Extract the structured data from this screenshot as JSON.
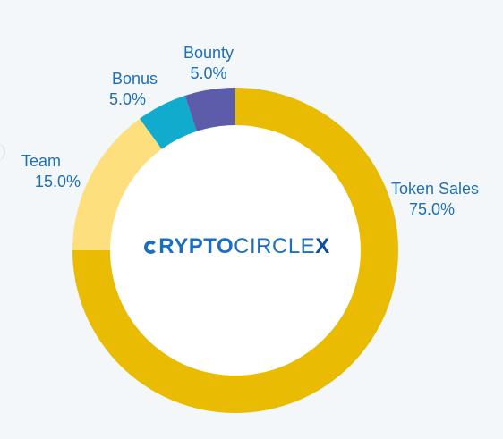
{
  "chart_data": {
    "type": "pie",
    "donut": true,
    "categories": [
      "Token Sales",
      "Team",
      "Bonus",
      "Bounty"
    ],
    "values": [
      75.0,
      15.0,
      5.0,
      5.0
    ],
    "percent_labels": [
      "75.0%",
      "15.0%",
      "5.0%",
      "5.0%"
    ],
    "colors": [
      "#e9bb02",
      "#fde07d",
      "#10abcd",
      "#5d5cab"
    ],
    "start_angle_deg": 0,
    "direction": "clockwise",
    "title": "",
    "legend": "none"
  },
  "logo": {
    "text_bold": "RYPTO",
    "text_thin": "CIRCLE",
    "text_x": "X",
    "icon": "c-ring-icon"
  }
}
